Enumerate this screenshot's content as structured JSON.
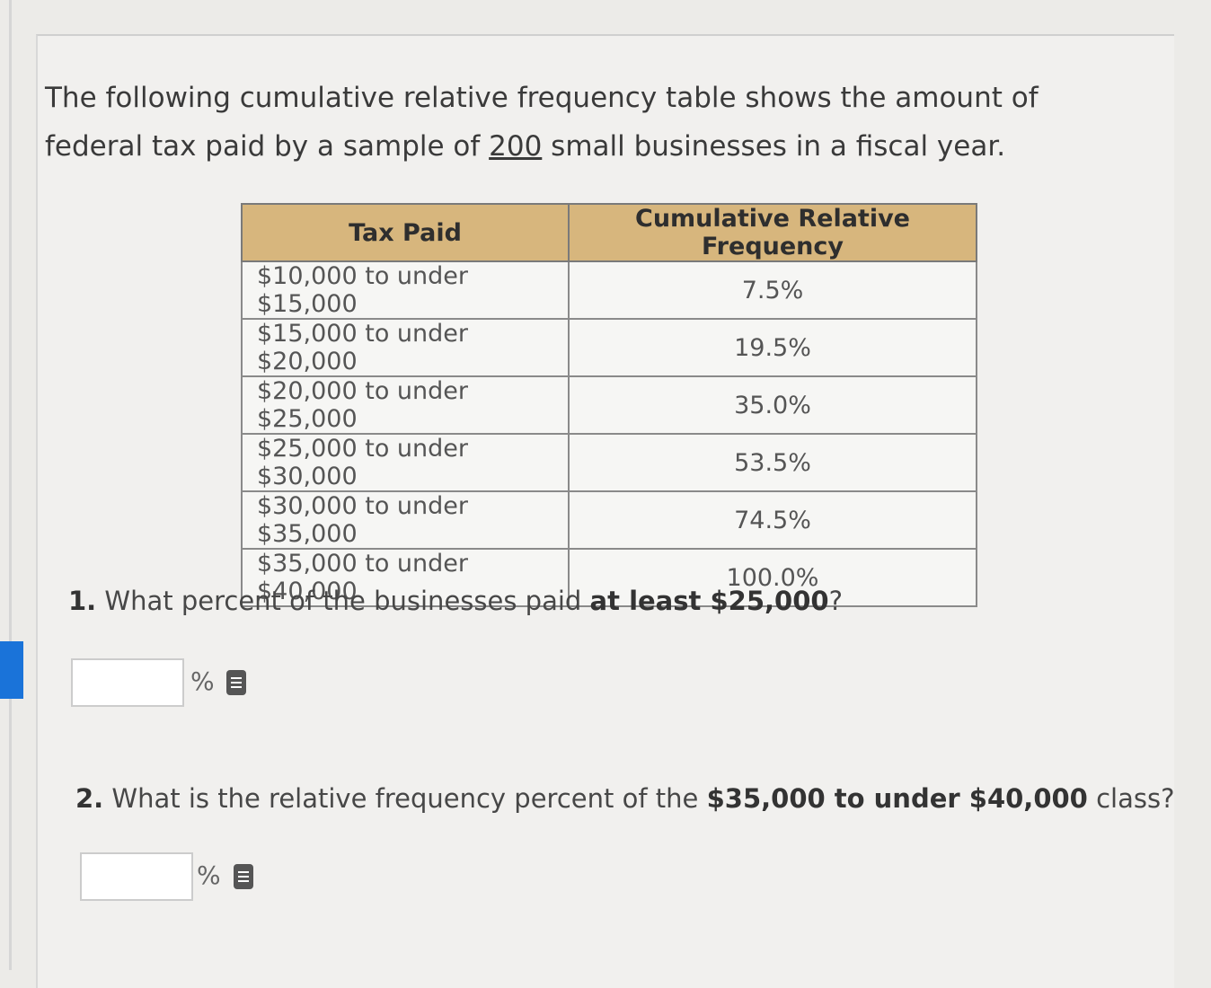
{
  "intro": {
    "before": "The following cumulative relative frequency table shows the amount of federal tax paid by a sample of ",
    "sample_size": "200",
    "after": " small businesses in a fiscal year."
  },
  "table": {
    "headers": [
      "Tax Paid",
      "Cumulative Relative Frequency"
    ],
    "rows": [
      [
        "$10,000 to under $15,000",
        "7.5%"
      ],
      [
        "$15,000 to under $20,000",
        "19.5%"
      ],
      [
        "$20,000 to under $25,000",
        "35.0%"
      ],
      [
        "$25,000 to under $30,000",
        "53.5%"
      ],
      [
        "$30,000 to under $35,000",
        "74.5%"
      ],
      [
        "$35,000 to under $40,000",
        "100.0%"
      ]
    ]
  },
  "questions": [
    {
      "number": "1.",
      "before": " What percent of the businesses paid ",
      "bold": "at least $25,000",
      "after": "?",
      "unit": "%"
    },
    {
      "number": "2.",
      "before": " What is the relative frequency percent of the ",
      "bold": "$35,000 to under $40,000",
      "after": " class?",
      "unit": "%"
    }
  ]
}
